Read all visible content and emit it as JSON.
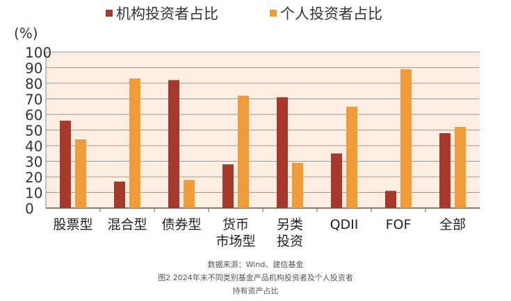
{
  "chart_data": {
    "type": "bar",
    "ylabel": "(%)",
    "ylim": [
      0,
      100
    ],
    "yticks": [
      0,
      10,
      20,
      30,
      40,
      50,
      60,
      70,
      80,
      90,
      100
    ],
    "grid": true,
    "legend_position": "top",
    "background_color": "#fbeee0",
    "categories": [
      [
        "股票型"
      ],
      [
        "混合型"
      ],
      [
        "债券型"
      ],
      [
        "货币",
        "市场型"
      ],
      [
        "另类",
        "投资"
      ],
      [
        "QDII"
      ],
      [
        "FOF"
      ],
      [
        "全部"
      ]
    ],
    "series": [
      {
        "name": "机构投资者占比",
        "color": "#a53a2c",
        "values": [
          56,
          17,
          82,
          28,
          71,
          35,
          11,
          48
        ]
      },
      {
        "name": "个人投资者占比",
        "color": "#ee9b3a",
        "values": [
          44,
          83,
          18,
          72,
          29,
          65,
          89,
          52
        ]
      }
    ]
  },
  "caption": {
    "source": "数据来源：Wind、建信基金",
    "title_line1": "图2 2024年末不同类别基金产品机构投资者及个人投资者",
    "title_line2": "持有资产占比"
  }
}
